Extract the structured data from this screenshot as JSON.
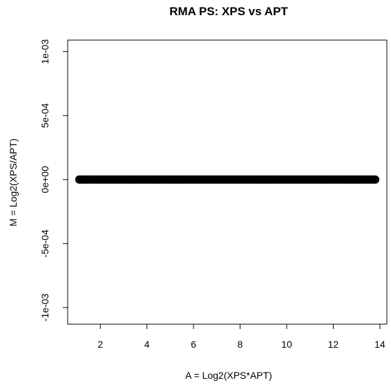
{
  "chart_data": {
    "type": "scatter",
    "title": "RMA PS: XPS vs APT",
    "xlabel": "A = Log2(XPS*APT)",
    "ylabel": "M = Log2(XPS/APT)",
    "xlim": [
      0.6,
      14.3
    ],
    "ylim": [
      -0.00113,
      0.00109
    ],
    "x_ticks": [
      2,
      4,
      6,
      8,
      10,
      12,
      14
    ],
    "x_tick_labels": [
      "2",
      "4",
      "6",
      "8",
      "10",
      "12",
      "14"
    ],
    "y_ticks": [
      -0.001,
      -0.0005,
      0,
      0.0005,
      0.001
    ],
    "y_tick_labels": [
      "-1e-03",
      "-5e-04",
      "0e+00",
      "5e-04",
      "1e-03"
    ],
    "grid": false,
    "point_color": "#000000",
    "series": [
      {
        "x_range": [
          1.1,
          13.8
        ],
        "y_value": 0
      }
    ]
  }
}
